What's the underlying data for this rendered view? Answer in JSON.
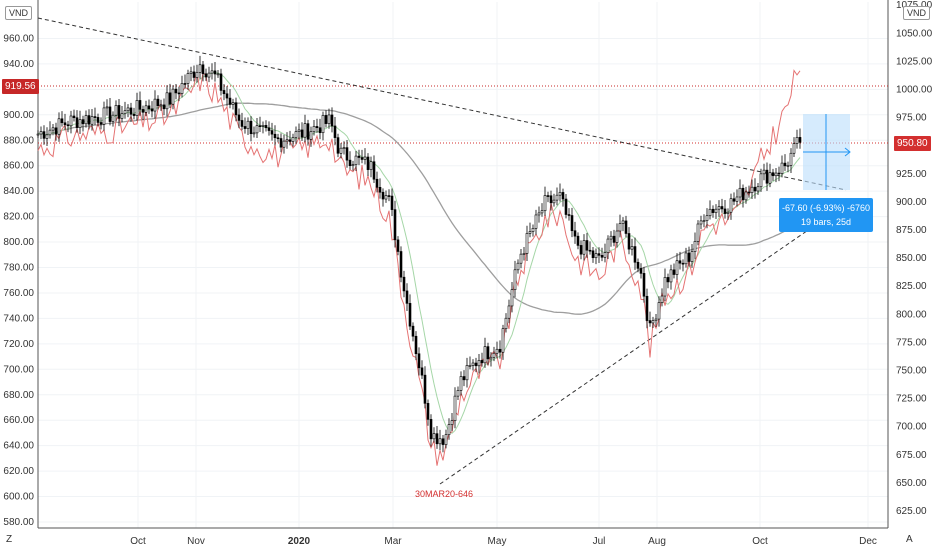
{
  "chart_data": {
    "type": "candlestick",
    "unit_left": "VND",
    "unit_right": "VND",
    "left_axis": {
      "ticks": [
        580,
        600,
        620,
        640,
        660,
        680,
        700,
        720,
        740,
        760,
        780,
        800,
        820,
        840,
        860,
        880,
        900,
        920,
        940,
        960
      ],
      "range": [
        574,
        982
      ]
    },
    "right_axis": {
      "ticks": [
        625,
        650,
        675,
        700,
        725,
        750,
        775,
        800,
        825,
        850,
        875,
        900,
        925,
        950,
        975,
        1000,
        1025,
        1050,
        1075
      ],
      "range": [
        605,
        1085
      ]
    },
    "x_axis": {
      "labels": [
        "Oct",
        "Nov",
        "2020",
        "Mar",
        "May",
        "Jul",
        "Aug",
        "Oct",
        "Dec"
      ]
    },
    "last_price_left": "919.56",
    "last_price_right": "950.80",
    "low_annotation": "30MAR20-646",
    "measure": {
      "line1": "-67.60 (-6.93%) -6760",
      "line2": "19 bars, 25d"
    },
    "colors": {
      "up": "#ffffff",
      "down": "#000000",
      "comparison": "#e57373",
      "ma_fast": "#a5d6a7",
      "ma_slow": "#9e9e9e",
      "last_left": "#c62828",
      "last_right": "#d32f2f",
      "measure": "#2196f3"
    },
    "series_points": [
      {
        "t": "Aug 2019",
        "close": 885
      },
      {
        "t": "Sep 2019",
        "close": 895
      },
      {
        "t": "Oct 2019",
        "close": 905
      },
      {
        "t": "Nov 2019",
        "close": 940
      },
      {
        "t": "Dec 2019",
        "close": 880
      },
      {
        "t": "Jan 2020",
        "close": 885
      },
      {
        "t": "Feb 2020",
        "close": 870
      },
      {
        "t": "Mar 2020",
        "close": 740
      },
      {
        "t": "30 Mar 2020",
        "close": 646
      },
      {
        "t": "Apr 2020",
        "close": 710
      },
      {
        "t": "May 2020",
        "close": 780
      },
      {
        "t": "Jun 2020",
        "close": 830
      },
      {
        "t": "Jul 2020",
        "close": 805
      },
      {
        "t": "Aug 2020",
        "close": 800
      },
      {
        "t": "Sep 2020",
        "close": 860
      },
      {
        "t": "Oct 2020",
        "close": 880
      },
      {
        "t": "Nov 2020",
        "close": 919.56
      }
    ]
  },
  "corners": {
    "bottom_left": "Z",
    "bottom_right": "A"
  }
}
